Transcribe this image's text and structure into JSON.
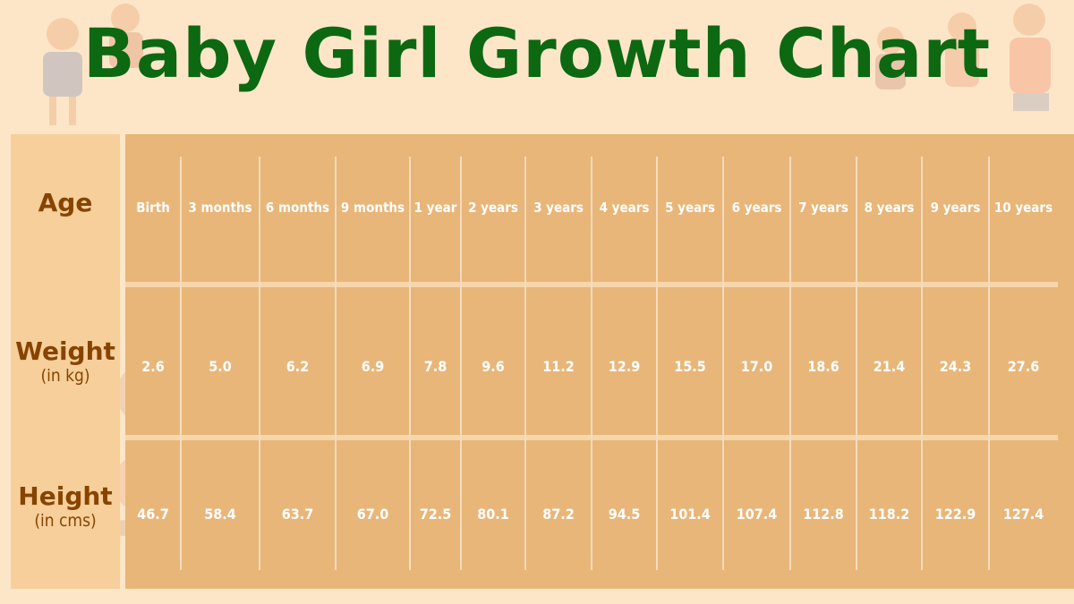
{
  "title": "Baby Girl Growth Chart",
  "colors": {
    "background": "#fde6c8",
    "title": "#0d6812",
    "label_text": "#874400",
    "table_fill": "#e9b679",
    "label_column_fill": "#f6cf9b",
    "cell_text": "#ffffff"
  },
  "row_labels": {
    "age": "Age",
    "weight": "Weight",
    "weight_unit": "(in kg)",
    "height": "Height",
    "height_unit": "(in cms)"
  },
  "chart_data": {
    "type": "table",
    "title": "Baby Girl Growth Chart",
    "columns": [
      "Birth",
      "3 months",
      "6 months",
      "9 months",
      "1 year",
      "2 years",
      "3 years",
      "4 years",
      "5 years",
      "6 years",
      "7 years",
      "8 years",
      "9 years",
      "10 years"
    ],
    "rows": [
      {
        "label": "Weight",
        "unit": "(in kg)",
        "values": [
          "2.6",
          "5.0",
          "6.2",
          "6.9",
          "7.8",
          "9.6",
          "11.2",
          "12.9",
          "15.5",
          "17.0",
          "18.6",
          "21.4",
          "24.3",
          "27.6"
        ]
      },
      {
        "label": "Height",
        "unit": "(in cms)",
        "values": [
          "46.7",
          "58.4",
          "63.7",
          "67.0",
          "72.5",
          "80.1",
          "87.2",
          "94.5",
          "101.4",
          "107.4",
          "112.8",
          "118.2",
          "122.9",
          "127.4"
        ]
      }
    ]
  }
}
